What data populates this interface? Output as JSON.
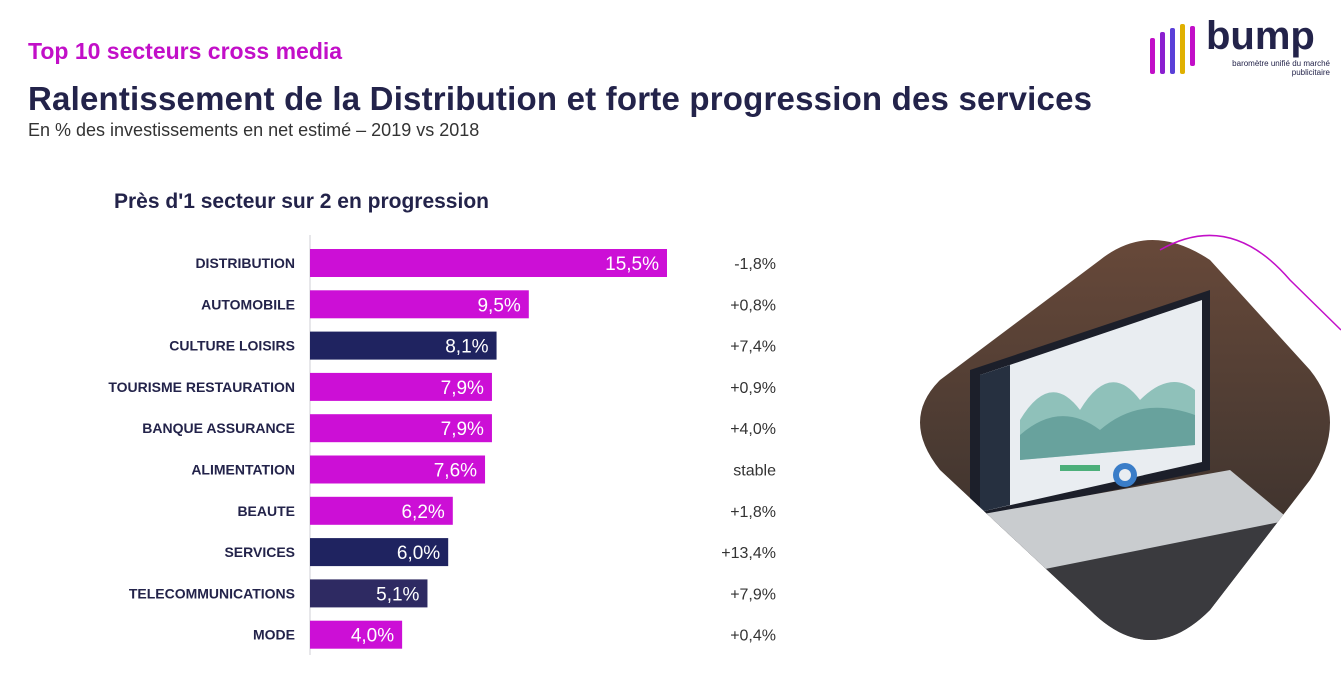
{
  "header": {
    "kicker": "Top 10 secteurs cross media",
    "title": "Ralentissement de la Distribution et forte progression des services",
    "subtitle": "En % des investissements en net estimé – 2019 vs 2018"
  },
  "logo": {
    "word": "bump",
    "tagline": "baromètre unifié du marché publicitaire"
  },
  "chart_data": {
    "type": "bar",
    "orientation": "horizontal",
    "title": "Près d'1 secteur sur 2 en progression",
    "categories": [
      "DISTRIBUTION",
      "AUTOMOBILE",
      "CULTURE LOISIRS",
      "TOURISME RESTAURATION",
      "BANQUE ASSURANCE",
      "ALIMENTATION",
      "BEAUTE",
      "SERVICES",
      "TELECOMMUNICATIONS",
      "MODE"
    ],
    "values": [
      15.5,
      9.5,
      8.1,
      7.9,
      7.9,
      7.6,
      6.2,
      6.0,
      5.1,
      4.0
    ],
    "value_labels": [
      "15,5%",
      "9,5%",
      "8,1%",
      "7,9%",
      "7,9%",
      "7,6%",
      "6,2%",
      "6,0%",
      "5,1%",
      "4,0%"
    ],
    "evolution_labels": [
      "-1,8%",
      "+0,8%",
      "+7,4%",
      "+0,9%",
      "+4,0%",
      "stable",
      "+1,8%",
      "+13,4%",
      "+7,9%",
      "+0,4%"
    ],
    "bar_colors": [
      "#cc0fd6",
      "#cc0fd6",
      "#1f2360",
      "#cc0fd6",
      "#cc0fd6",
      "#cc0fd6",
      "#cc0fd6",
      "#1f2360",
      "#2e2a62",
      "#cc0fd6"
    ],
    "xlim": [
      0,
      15.5
    ],
    "grid": false,
    "legend": "none"
  },
  "colors": {
    "accent": "#c20fc8",
    "navy": "#1f2360"
  }
}
